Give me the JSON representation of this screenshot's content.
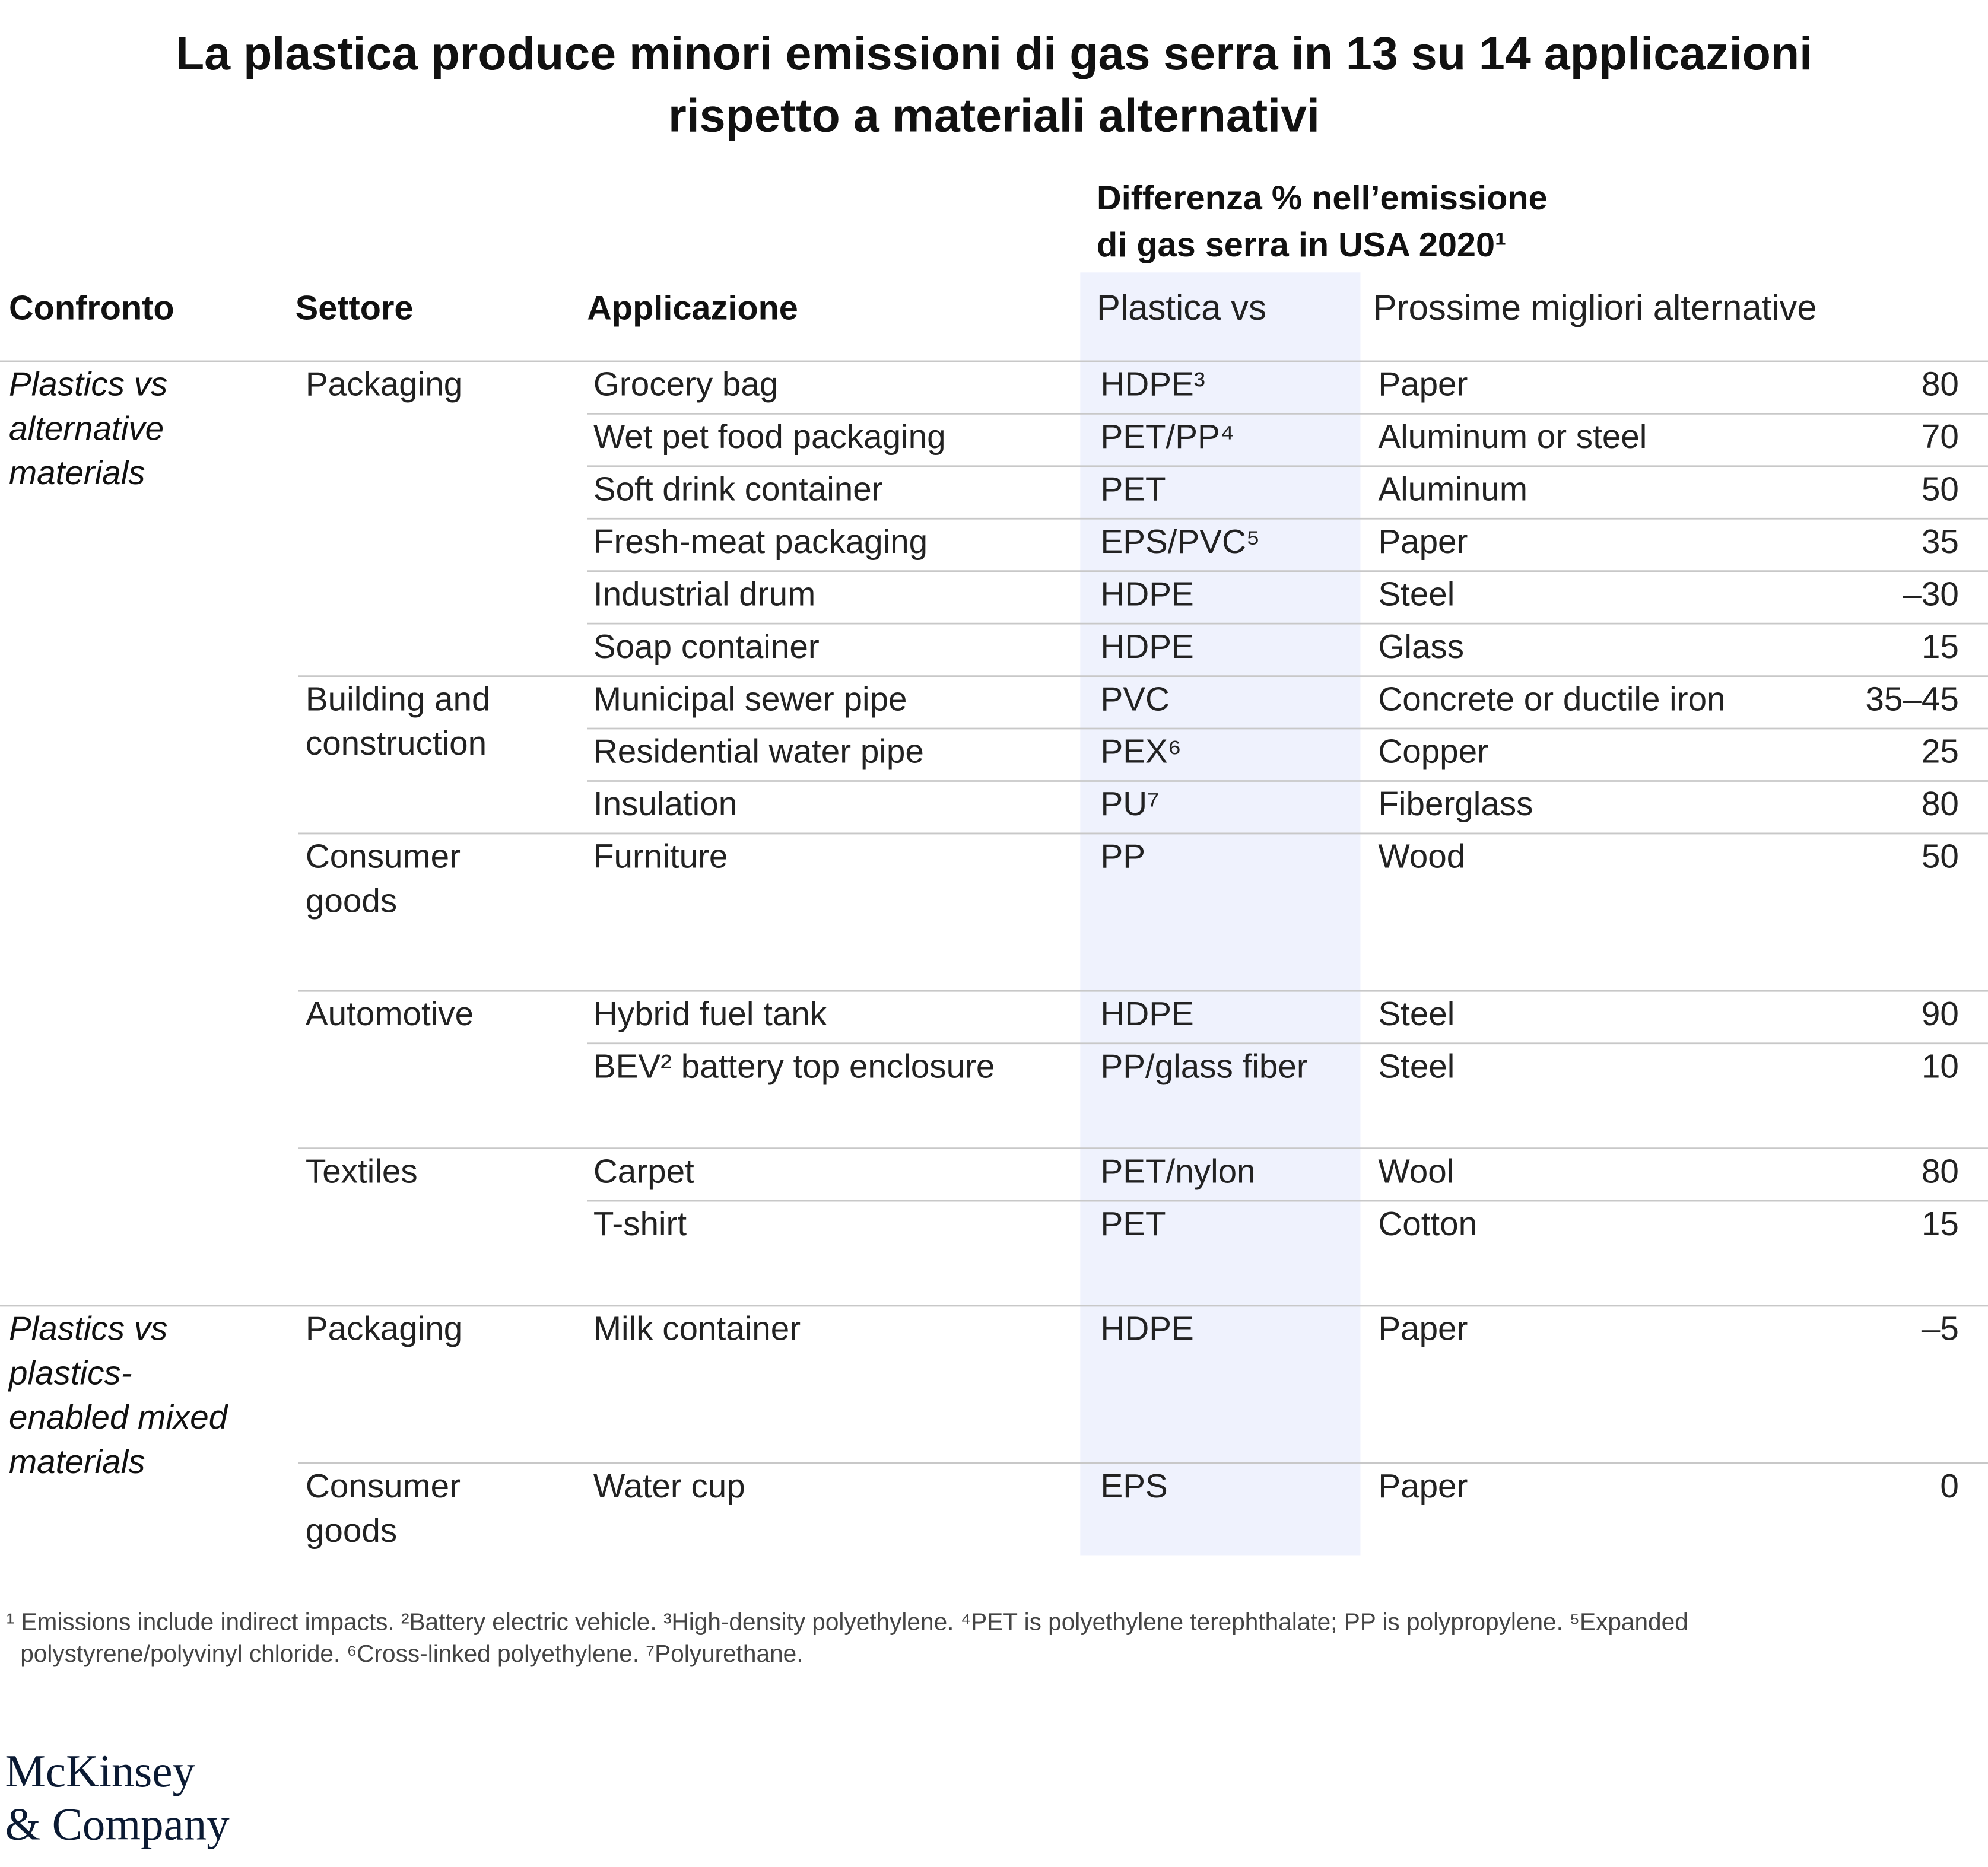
{
  "header": {
    "title": [
      "La plastica produce minori emissioni di gas serra in 13 su 14 applicazioni",
      "rispetto a materiali alternativi"
    ],
    "super_header": [
      "Differenza % nell’emissione",
      "di gas serra in USA 2020¹"
    ]
  },
  "table": {
    "columns": [
      "Confronto",
      "Settore",
      "Applicazione",
      "Plastica vs",
      "Prossime migliori alternative"
    ],
    "groups": [
      {
        "comparison": [
          "Plastics vs",
          "alternative",
          "materials"
        ],
        "sectors": [
          {
            "name": [
              "Packaging"
            ],
            "rows": [
              [
                "Grocery bag",
                "HDPE³",
                "Paper",
                "80"
              ],
              [
                "Wet pet food packaging",
                "PET/PP⁴",
                "Aluminum or steel",
                "70"
              ],
              [
                "Soft drink container",
                "PET",
                "Aluminum",
                "50"
              ],
              [
                "Fresh-meat packaging",
                "EPS/PVC⁵",
                "Paper",
                "35"
              ],
              [
                "Industrial drum",
                "HDPE",
                "Steel",
                "–30"
              ],
              [
                "Soap container",
                "HDPE",
                "Glass",
                "15"
              ]
            ]
          },
          {
            "name": [
              "Building and",
              "construction"
            ],
            "rows": [
              [
                "Municipal sewer pipe",
                "PVC",
                "Concrete or ductile iron",
                "35–45"
              ],
              [
                "Residential water pipe",
                "PEX⁶",
                "Copper",
                "25"
              ],
              [
                "Insulation",
                "PU⁷",
                "Fiberglass",
                "80"
              ]
            ]
          },
          {
            "name": [
              "Consumer",
              "goods"
            ],
            "rows": [
              [
                "Furniture",
                "PP",
                "Wood",
                "50"
              ]
            ]
          },
          {
            "name": [
              "Automotive"
            ],
            "rows": [
              [
                "Hybrid fuel tank",
                "HDPE",
                "Steel",
                "90"
              ],
              [
                "BEV² battery top enclosure",
                "PP/glass fiber",
                "Steel",
                "10"
              ]
            ]
          },
          {
            "name": [
              "Textiles"
            ],
            "rows": [
              [
                "Carpet",
                "PET/nylon",
                "Wool",
                "80"
              ],
              [
                "T-shirt",
                "PET",
                "Cotton",
                "15"
              ]
            ]
          }
        ]
      },
      {
        "comparison": [
          "Plastics vs",
          "plastics-",
          "enabled mixed",
          "materials"
        ],
        "sectors": [
          {
            "name": [
              "Packaging"
            ],
            "rows": [
              [
                "Milk container",
                "HDPE",
                "Paper",
                "–5"
              ]
            ]
          },
          {
            "name": [
              "Consumer",
              "goods"
            ],
            "rows": [
              [
                "Water cup",
                "EPS",
                "Paper",
                "0"
              ]
            ]
          }
        ]
      }
    ]
  },
  "footnotes": [
    "¹ Emissions include indirect impacts. ²Battery electric vehicle. ³High-density polyethylene. ⁴PET is polyethylene terephthalate; PP is polypropylene. ⁵Expanded",
    "polystyrene/polyvinyl chloride. ⁶Cross-linked polyethylene. ⁷Polyurethane."
  ],
  "logo": [
    "McKinsey",
    "& Company"
  ]
}
